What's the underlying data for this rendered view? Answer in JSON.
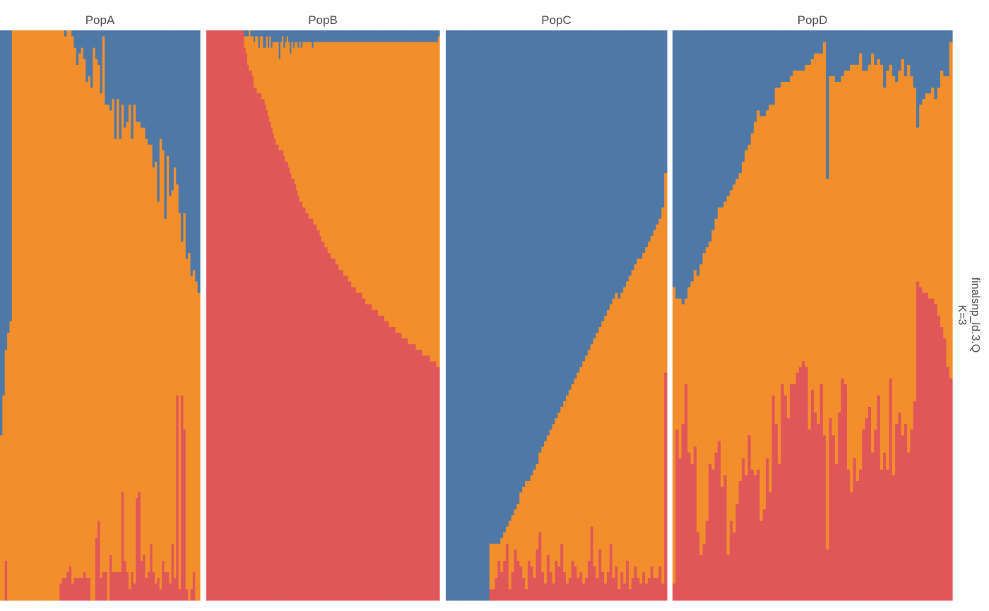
{
  "chart_data": {
    "type": "bar",
    "stacked": true,
    "xlabel": "",
    "ylabel": "",
    "ylim": [
      0,
      1
    ],
    "grid": false,
    "legend": "none",
    "facet_row_label": [
      "finalsnp_ld.3.Q",
      "K=3"
    ],
    "cluster_order": [
      "red",
      "orange",
      "blue"
    ],
    "colors": {
      "red": "#E15759",
      "orange": "#F28E2B",
      "blue": "#4E79A7"
    },
    "panels": [
      {
        "name": "PopA",
        "red": [
          0,
          0,
          0.07,
          0,
          0,
          0,
          0,
          0,
          0,
          0,
          0,
          0,
          0,
          0,
          0,
          0,
          0,
          0,
          0,
          0,
          0,
          0,
          0,
          0,
          0,
          0.03,
          0.04,
          0.04,
          0.05,
          0.06,
          0.03,
          0.04,
          0.04,
          0.04,
          0.04,
          0.05,
          0.04,
          0.04,
          0,
          0,
          0.11,
          0.14,
          0.04,
          0.05,
          0.05,
          0,
          0.08,
          0.05,
          0.05,
          0.05,
          0.05,
          0.19,
          0.07,
          0.05,
          0.02,
          0.05,
          0.03,
          0.18,
          0.19,
          0.07,
          0.08,
          0.04,
          0.05,
          0.1,
          0.05,
          0.03,
          0.04,
          0.02,
          0.07,
          0.05,
          0.05,
          0.03,
          0.1,
          0.04,
          0.36,
          0.02,
          0.36,
          0.3,
          0.02,
          0,
          0.02,
          0.05,
          0,
          0
        ],
        "orange": [
          0.29,
          0.36,
          0.37,
          0.47,
          0.49,
          1,
          1,
          1,
          1,
          1,
          1,
          1,
          1,
          1,
          1,
          1,
          1,
          1,
          1,
          1,
          1,
          1,
          1,
          1,
          1,
          0.97,
          0.96,
          0.95,
          0.95,
          0.94,
          0.96,
          0.93,
          0.9,
          0.92,
          0.93,
          0.9,
          0.87,
          0.88,
          0.9,
          0.97,
          0.84,
          0.8,
          0.85,
          0.94,
          0.82,
          0.87,
          0.78,
          0.83,
          0.76,
          0.83,
          0.76,
          0.68,
          0.76,
          0.79,
          0.85,
          0.76,
          0.84,
          0.66,
          0.65,
          0.76,
          0.75,
          0.77,
          0.75,
          0.7,
          0.71,
          0.74,
          0.66,
          0.79,
          0.72,
          0.62,
          0.73,
          0.68,
          0.62,
          0.72,
          0.37,
          0.66,
          0.27,
          0.38,
          0.58,
          0.61,
          0.55,
          0.53,
          0.56,
          0.54
        ],
        "blue": [
          0.71,
          0.64,
          0.56,
          0.53,
          0.51,
          0,
          0,
          0,
          0,
          0,
          0,
          0,
          0,
          0,
          0,
          0,
          0,
          0,
          0,
          0,
          0,
          0,
          0,
          0,
          0,
          0,
          0,
          0.01,
          0,
          0,
          0.01,
          0.03,
          0.06,
          0.04,
          0.03,
          0.05,
          0.09,
          0.08,
          0.1,
          0.03,
          0.05,
          0.06,
          0.11,
          0.01,
          0.13,
          0.13,
          0.14,
          0.12,
          0.19,
          0.12,
          0.19,
          0.13,
          0.17,
          0.16,
          0.13,
          0.19,
          0.13,
          0.16,
          0.16,
          0.17,
          0.17,
          0.19,
          0.2,
          0.2,
          0.24,
          0.23,
          0.3,
          0.19,
          0.21,
          0.33,
          0.22,
          0.29,
          0.28,
          0.24,
          0.27,
          0.32,
          0.37,
          0.32,
          0.4,
          0.39,
          0.43,
          0.42,
          0.44,
          0.46
        ]
      },
      {
        "name": "PopB",
        "red": [
          1,
          1,
          1,
          1,
          1,
          1,
          1,
          1,
          1,
          1,
          1,
          1,
          1,
          1,
          1,
          1,
          1,
          1,
          1,
          1,
          1,
          1,
          1,
          1,
          0.97,
          0.96,
          0.94,
          0.93,
          0.93,
          0.92,
          0.9,
          0.9,
          0.89,
          0.89,
          0.89,
          0.88,
          0.88,
          0.87,
          0.86,
          0.85,
          0.84,
          0.83,
          0.82,
          0.81,
          0.8,
          0.8,
          0.79,
          0.79,
          0.79,
          0.78,
          0.77,
          0.77,
          0.76,
          0.75,
          0.74,
          0.74,
          0.73,
          0.72,
          0.71,
          0.7,
          0.7,
          0.69,
          0.69,
          0.68,
          0.68,
          0.67,
          0.67,
          0.67,
          0.66,
          0.66,
          0.65,
          0.65,
          0.64,
          0.63,
          0.63,
          0.62,
          0.62,
          0.61,
          0.61,
          0.6,
          0.6,
          0.6,
          0.59,
          0.59,
          0.58,
          0.58,
          0.58,
          0.57,
          0.57,
          0.57,
          0.56,
          0.56,
          0.55,
          0.55,
          0.55,
          0.54,
          0.54,
          0.54,
          0.54,
          0.53,
          0.53,
          0.52,
          0.52,
          0.52,
          0.52,
          0.51,
          0.51,
          0.51,
          0.51,
          0.5,
          0.5,
          0.5,
          0.5,
          0.49,
          0.49,
          0.49,
          0.48,
          0.48,
          0.48,
          0.48,
          0.47,
          0.47,
          0.47,
          0.47,
          0.46,
          0.46,
          0.46,
          0.46,
          0.45,
          0.45,
          0.45,
          0.45,
          0.45,
          0.44,
          0.44,
          0.44,
          0.44,
          0.43,
          0.43,
          0.43,
          0.43,
          0.43,
          0.42,
          0.42,
          0.42,
          0.42,
          0.41,
          0.41
        ],
        "orange": [
          0,
          0,
          0,
          0,
          0,
          0,
          0,
          0,
          0,
          0,
          0,
          0,
          0,
          0,
          0,
          0,
          0,
          0,
          0,
          0,
          0,
          0,
          0,
          0,
          0.02,
          0.03,
          0.05,
          0.07,
          0.06,
          0.07,
          0.08,
          0.09,
          0.1,
          0.08,
          0.1,
          0.11,
          0.09,
          0.1,
          0.13,
          0.12,
          0.15,
          0.14,
          0.16,
          0.17,
          0.18,
          0.18,
          0.16,
          0.19,
          0.2,
          0.19,
          0.21,
          0.22,
          0.22,
          0.21,
          0.24,
          0.23,
          0.25,
          0.26,
          0.26,
          0.28,
          0.27,
          0.29,
          0.29,
          0.3,
          0.3,
          0.31,
          0.31,
          0.3,
          0.32,
          0.32,
          0.33,
          0.33,
          0.34,
          0.35,
          0.35,
          0.36,
          0.36,
          0.37,
          0.37,
          0.38,
          0.38,
          0.38,
          0.39,
          0.39,
          0.4,
          0.4,
          0.4,
          0.41,
          0.41,
          0.41,
          0.42,
          0.42,
          0.43,
          0.43,
          0.43,
          0.44,
          0.44,
          0.44,
          0.44,
          0.45,
          0.45,
          0.46,
          0.46,
          0.46,
          0.46,
          0.47,
          0.47,
          0.47,
          0.47,
          0.48,
          0.48,
          0.48,
          0.48,
          0.49,
          0.49,
          0.49,
          0.5,
          0.5,
          0.5,
          0.5,
          0.51,
          0.51,
          0.51,
          0.51,
          0.52,
          0.52,
          0.52,
          0.52,
          0.53,
          0.53,
          0.53,
          0.53,
          0.53,
          0.54,
          0.54,
          0.54,
          0.54,
          0.55,
          0.55,
          0.55,
          0.55,
          0.55,
          0.56,
          0.56,
          0.56,
          0.56,
          0.57,
          0.58
        ],
        "blue": [
          0,
          0,
          0,
          0,
          0,
          0,
          0,
          0,
          0,
          0,
          0,
          0,
          0,
          0,
          0,
          0,
          0,
          0,
          0,
          0,
          0,
          0,
          0,
          0,
          0.01,
          0.01,
          0.01,
          0,
          0.01,
          0.01,
          0.02,
          0.01,
          0.01,
          0.03,
          0.01,
          0.01,
          0.03,
          0.03,
          0.01,
          0.03,
          0.01,
          0.03,
          0.02,
          0.02,
          0.02,
          0.02,
          0.05,
          0.02,
          0.01,
          0.03,
          0.02,
          0.01,
          0.02,
          0.04,
          0.02,
          0.03,
          0.02,
          0.02,
          0.03,
          0.02,
          0.03,
          0.02,
          0.02,
          0.02,
          0.02,
          0.02,
          0.02,
          0.03,
          0.02,
          0.02,
          0.02,
          0.02,
          0.02,
          0.02,
          0.02,
          0.02,
          0.02,
          0.02,
          0.02,
          0.02,
          0.02,
          0.02,
          0.02,
          0.02,
          0.02,
          0.02,
          0.02,
          0.02,
          0.02,
          0.02,
          0.02,
          0.02,
          0.02,
          0.02,
          0.02,
          0.02,
          0.02,
          0.02,
          0.02,
          0.02,
          0.02,
          0.02,
          0.02,
          0.02,
          0.02,
          0.02,
          0.02,
          0.02,
          0.02,
          0.02,
          0.02,
          0.02,
          0.02,
          0.02,
          0.02,
          0.02,
          0.02,
          0.02,
          0.02,
          0.02,
          0.02,
          0.02,
          0.02,
          0.02,
          0.02,
          0.02,
          0.02,
          0.02,
          0.02,
          0.02,
          0.02,
          0.02,
          0.02,
          0.02,
          0.02,
          0.02,
          0.02,
          0.02,
          0.02,
          0.02,
          0.02,
          0.02,
          0.02,
          0.02,
          0.02,
          0.02,
          0.02,
          0.01
        ]
      },
      {
        "name": "PopC",
        "red": [
          0,
          0,
          0,
          0,
          0,
          0,
          0,
          0,
          0,
          0,
          0,
          0,
          0,
          0,
          0,
          0,
          0.02,
          0.02,
          0.04,
          0.07,
          0.05,
          0.07,
          0.1,
          0.02,
          0.05,
          0.09,
          0.07,
          0.06,
          0.04,
          0.02,
          0.07,
          0.06,
          0.04,
          0.09,
          0.12,
          0.05,
          0.03,
          0.08,
          0.05,
          0.03,
          0.07,
          0.06,
          0.1,
          0.05,
          0.03,
          0.04,
          0.07,
          0.06,
          0.04,
          0.05,
          0.03,
          0.04,
          0.07,
          0.13,
          0.06,
          0.04,
          0.09,
          0.05,
          0.03,
          0.05,
          0.1,
          0.04,
          0.06,
          0.02,
          0.05,
          0.03,
          0.07,
          0.02,
          0.04,
          0.06,
          0.04,
          0.03,
          0.05,
          0.03,
          0.04,
          0.06,
          0.04,
          0.04,
          0.06,
          0.03,
          0.4
        ],
        "orange": [
          0,
          0,
          0,
          0,
          0,
          0,
          0,
          0,
          0,
          0,
          0,
          0,
          0,
          0,
          0,
          0,
          0.08,
          0.08,
          0.06,
          0.03,
          0.06,
          0.05,
          0.03,
          0.12,
          0.1,
          0.07,
          0.1,
          0.13,
          0.16,
          0.19,
          0.14,
          0.16,
          0.19,
          0.15,
          0.14,
          0.22,
          0.25,
          0.21,
          0.25,
          0.28,
          0.25,
          0.27,
          0.24,
          0.3,
          0.33,
          0.33,
          0.31,
          0.33,
          0.36,
          0.36,
          0.39,
          0.39,
          0.37,
          0.32,
          0.4,
          0.43,
          0.39,
          0.44,
          0.47,
          0.46,
          0.42,
          0.49,
          0.48,
          0.51,
          0.49,
          0.52,
          0.49,
          0.55,
          0.54,
          0.53,
          0.56,
          0.57,
          0.56,
          0.59,
          0.59,
          0.58,
          0.61,
          0.62,
          0.61,
          0.66,
          0.35
        ],
        "blue": [
          1,
          1,
          1,
          1,
          1,
          1,
          1,
          1,
          1,
          1,
          1,
          1,
          1,
          1,
          1,
          1,
          0.9,
          0.9,
          0.9,
          0.9,
          0.89,
          0.88,
          0.87,
          0.86,
          0.85,
          0.84,
          0.83,
          0.81,
          0.8,
          0.79,
          0.79,
          0.78,
          0.77,
          0.76,
          0.74,
          0.73,
          0.72,
          0.71,
          0.7,
          0.69,
          0.68,
          0.67,
          0.66,
          0.65,
          0.64,
          0.63,
          0.62,
          0.61,
          0.6,
          0.59,
          0.58,
          0.57,
          0.56,
          0.55,
          0.54,
          0.53,
          0.52,
          0.51,
          0.5,
          0.49,
          0.48,
          0.47,
          0.46,
          0.47,
          0.46,
          0.45,
          0.44,
          0.43,
          0.42,
          0.41,
          0.4,
          0.4,
          0.39,
          0.38,
          0.37,
          0.36,
          0.35,
          0.34,
          0.33,
          0.31,
          0.25
        ]
      },
      {
        "name": "PopD",
        "red": [
          0.03,
          0.3,
          0.25,
          0.31,
          0.38,
          0.26,
          0.24,
          0.27,
          0.12,
          0.08,
          0.1,
          0.14,
          0.24,
          0.23,
          0.26,
          0.28,
          0.2,
          0.22,
          0.08,
          0.14,
          0.12,
          0.17,
          0.21,
          0.25,
          0.22,
          0.29,
          0.23,
          0.22,
          0.23,
          0.14,
          0.16,
          0.25,
          0.19,
          0.36,
          0.31,
          0.24,
          0.38,
          0.36,
          0.32,
          0.38,
          0.38,
          0.4,
          0.41,
          0.42,
          0.41,
          0.3,
          0.37,
          0.33,
          0.31,
          0.38,
          0.29,
          0.09,
          0.32,
          0.29,
          0.24,
          0.33,
          0.39,
          0.38,
          0.23,
          0.19,
          0.25,
          0.21,
          0.23,
          0.3,
          0.32,
          0.34,
          0.26,
          0.3,
          0.36,
          0.23,
          0.26,
          0.23,
          0.39,
          0.22,
          0.31,
          0.33,
          0.29,
          0.31,
          0.26,
          0.3,
          0.35,
          0.56,
          0.55,
          0.54,
          0.54,
          0.53,
          0.53,
          0.52,
          0.5,
          0.48,
          0.46,
          0.41,
          0.39
        ],
        "orange": [
          0.52,
          0.23,
          0.28,
          0.21,
          0.15,
          0.29,
          0.32,
          0.31,
          0.45,
          0.51,
          0.51,
          0.48,
          0.39,
          0.42,
          0.41,
          0.41,
          0.49,
          0.48,
          0.63,
          0.58,
          0.61,
          0.57,
          0.54,
          0.52,
          0.57,
          0.51,
          0.59,
          0.62,
          0.63,
          0.71,
          0.69,
          0.61,
          0.68,
          0.51,
          0.59,
          0.66,
          0.53,
          0.55,
          0.59,
          0.54,
          0.55,
          0.53,
          0.52,
          0.51,
          0.53,
          0.64,
          0.58,
          0.63,
          0.65,
          0.58,
          0.69,
          0.65,
          0.6,
          0.63,
          0.67,
          0.58,
          0.53,
          0.55,
          0.7,
          0.75,
          0.69,
          0.73,
          0.73,
          0.63,
          0.61,
          0.6,
          0.7,
          0.64,
          0.59,
          0.71,
          0.64,
          0.7,
          0.55,
          0.7,
          0.6,
          0.6,
          0.66,
          0.61,
          0.68,
          0.62,
          0.55,
          0.27,
          0.32,
          0.34,
          0.35,
          0.36,
          0.37,
          0.36,
          0.4,
          0.45,
          0.46,
          0.51,
          0.59
        ],
        "blue": [
          0.45,
          0.47,
          0.47,
          0.48,
          0.47,
          0.45,
          0.44,
          0.42,
          0.43,
          0.41,
          0.39,
          0.38,
          0.37,
          0.35,
          0.33,
          0.31,
          0.31,
          0.3,
          0.29,
          0.28,
          0.27,
          0.26,
          0.25,
          0.23,
          0.21,
          0.2,
          0.18,
          0.16,
          0.14,
          0.15,
          0.15,
          0.14,
          0.13,
          0.13,
          0.1,
          0.1,
          0.09,
          0.09,
          0.09,
          0.08,
          0.07,
          0.07,
          0.07,
          0.07,
          0.06,
          0.06,
          0.05,
          0.04,
          0.04,
          0.04,
          0.02,
          0.26,
          0.08,
          0.08,
          0.09,
          0.09,
          0.08,
          0.07,
          0.07,
          0.06,
          0.06,
          0.06,
          0.04,
          0.07,
          0.07,
          0.06,
          0.04,
          0.06,
          0.05,
          0.06,
          0.1,
          0.07,
          0.06,
          0.08,
          0.09,
          0.07,
          0.05,
          0.08,
          0.06,
          0.08,
          0.1,
          0.17,
          0.13,
          0.12,
          0.11,
          0.11,
          0.1,
          0.12,
          0.1,
          0.07,
          0.08,
          0.08,
          0.02
        ]
      }
    ]
  }
}
